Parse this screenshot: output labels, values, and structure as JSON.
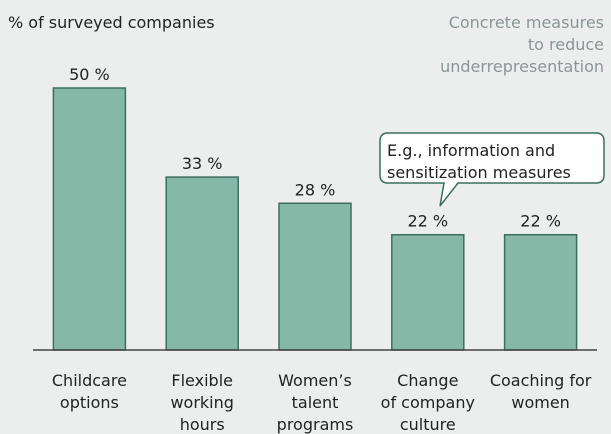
{
  "chart_data": {
    "type": "bar",
    "axis_title": "% of surveyed companies",
    "note": [
      "Concrete measures",
      "to reduce",
      "underrepresentation"
    ],
    "annotation": [
      "E.g., information and",
      "sensitization measures"
    ],
    "categories": [
      [
        "Childcare",
        "options"
      ],
      [
        "Flexible",
        "working",
        "hours"
      ],
      [
        "Women’s",
        "talent",
        "programs"
      ],
      [
        "Change",
        "of company",
        "culture"
      ],
      [
        "Coaching for",
        "women"
      ]
    ],
    "values": [
      50,
      33,
      28,
      22,
      22
    ],
    "value_labels": [
      "50 %",
      "33 %",
      "28 %",
      "22 %",
      "22 %"
    ],
    "color": "#86b8a8",
    "ylim": [
      0,
      50
    ]
  }
}
